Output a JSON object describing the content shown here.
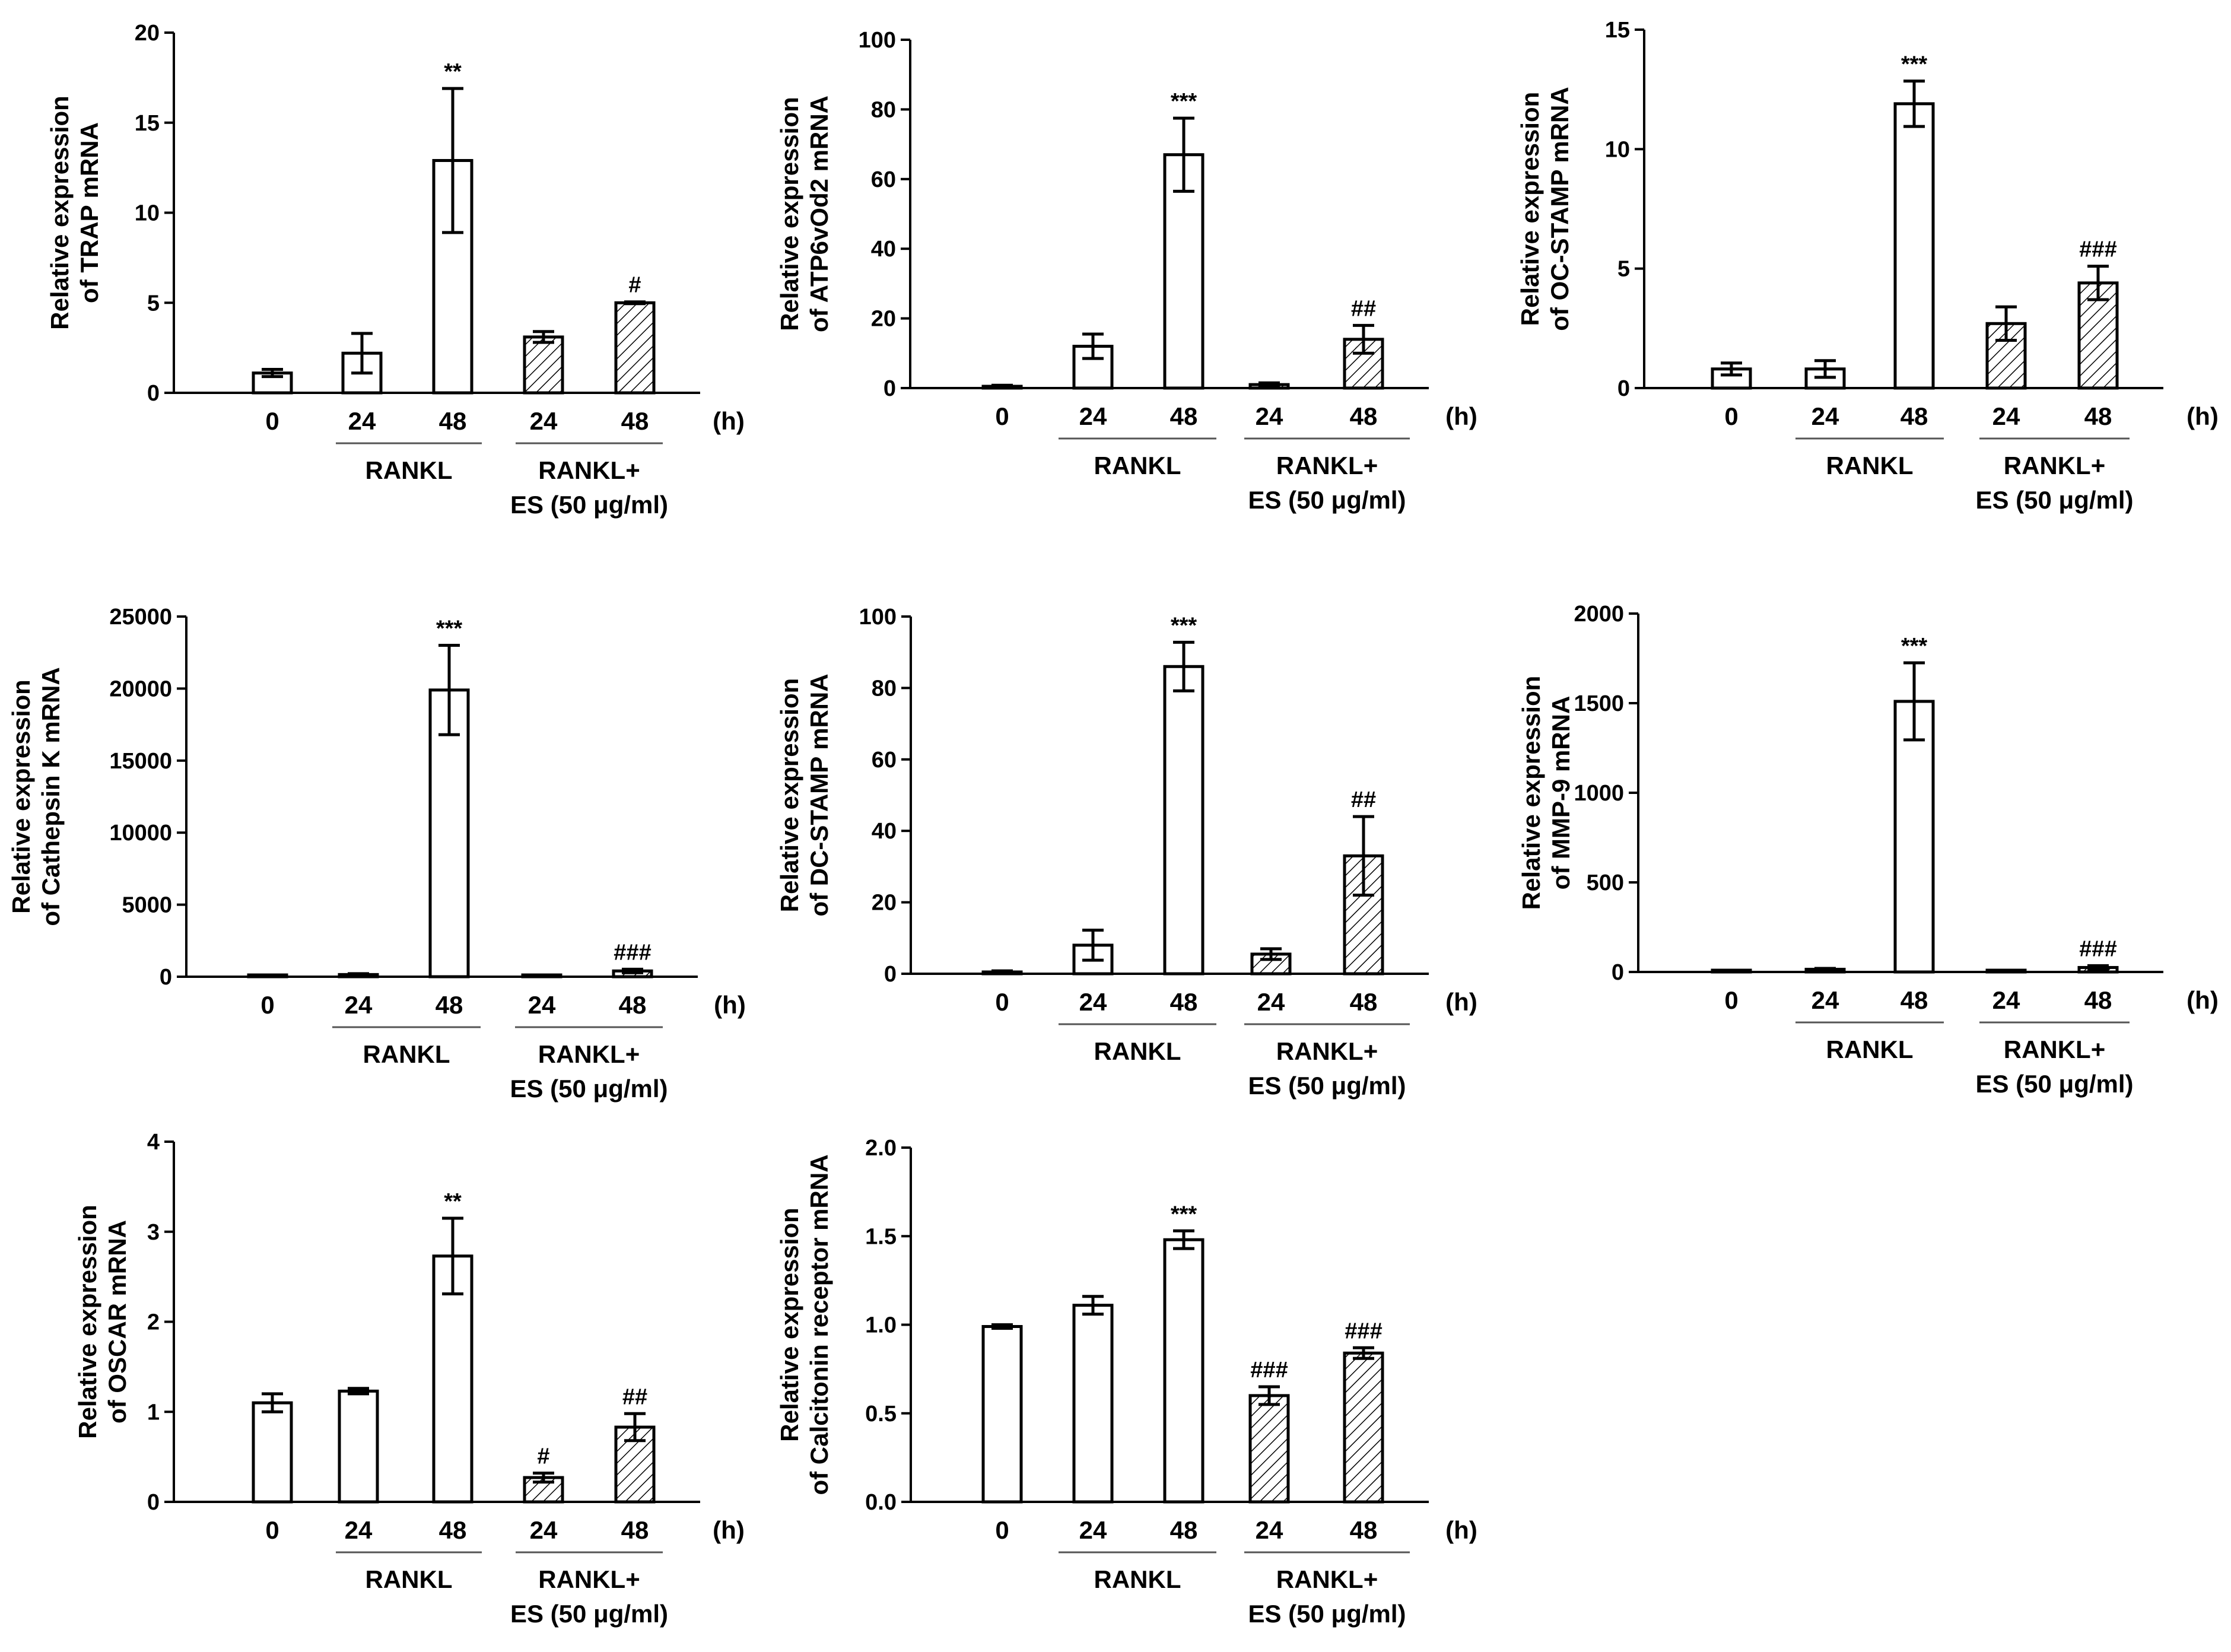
{
  "shared": {
    "categories": [
      "0",
      "24",
      "48",
      "24",
      "48"
    ],
    "unit": "(h)",
    "group1_label": "RANKL",
    "group2_label_line1": "RANKL+",
    "group2_label_line2": "ES (50 μg/ml)",
    "bar_patterns": [
      "open",
      "open",
      "open",
      "hatched",
      "hatched"
    ]
  },
  "chart_data": [
    {
      "type": "bar",
      "ylabel_line1": "Relative expression",
      "ylabel_line2": "of TRAP mRNA",
      "ylim": [
        0,
        20
      ],
      "yticks": [
        "0",
        "5",
        "10",
        "15",
        "20"
      ],
      "values": [
        1.1,
        2.2,
        12.9,
        3.1,
        5.0
      ],
      "errors": [
        0.2,
        1.1,
        4.0,
        0.3,
        0.05
      ],
      "annotations": [
        "",
        "",
        "**",
        "",
        "#"
      ]
    },
    {
      "type": "bar",
      "ylabel_line1": "Relative expression",
      "ylabel_line2": "of ATP6vOd2 mRNA",
      "ylim": [
        0,
        100
      ],
      "yticks": [
        "0",
        "20",
        "40",
        "60",
        "80",
        "100"
      ],
      "values": [
        0.5,
        12,
        67,
        1,
        14
      ],
      "errors": [
        0.3,
        3.5,
        10.5,
        0.5,
        4
      ],
      "annotations": [
        "",
        "",
        "***",
        "",
        "##"
      ]
    },
    {
      "type": "bar",
      "ylabel_line1": "Relative expression",
      "ylabel_line2": "of OC-STAMP mRNA",
      "ylim": [
        0,
        15
      ],
      "yticks": [
        "0",
        "5",
        "10",
        "15"
      ],
      "values": [
        0.8,
        0.8,
        11.9,
        2.7,
        4.4
      ],
      "errors": [
        0.25,
        0.35,
        0.95,
        0.7,
        0.7
      ],
      "annotations": [
        "",
        "",
        "***",
        "",
        "###"
      ]
    },
    {
      "type": "bar",
      "ylabel_line1": "Relative expression",
      "ylabel_line2": "of Cathepsin K mRNA",
      "ylim": [
        0,
        25000
      ],
      "yticks": [
        "0",
        "5000",
        "10000",
        "15000",
        "20000",
        "25000"
      ],
      "values": [
        10,
        150,
        19900,
        20,
        400
      ],
      "errors": [
        5,
        60,
        3100,
        10,
        120
      ],
      "annotations": [
        "",
        "",
        "***",
        "",
        "###"
      ]
    },
    {
      "type": "bar",
      "ylabel_line1": "Relative expression",
      "ylabel_line2": "of DC-STAMP mRNA",
      "ylim": [
        0,
        100
      ],
      "yticks": [
        "0",
        "20",
        "40",
        "60",
        "80",
        "100"
      ],
      "values": [
        0.5,
        8,
        86,
        5.5,
        33
      ],
      "errors": [
        0.3,
        4.2,
        6.8,
        1.5,
        11
      ],
      "annotations": [
        "",
        "",
        "***",
        "",
        "##"
      ]
    },
    {
      "type": "bar",
      "ylabel_line1": "Relative expression",
      "ylabel_line2": "of MMP-9 mRNA",
      "ylim": [
        0,
        2000
      ],
      "yticks": [
        "0",
        "500",
        "1000",
        "1500",
        "2000"
      ],
      "values": [
        1,
        15,
        1510,
        2,
        25
      ],
      "errors": [
        0.5,
        5,
        215,
        1,
        10
      ],
      "annotations": [
        "",
        "",
        "***",
        "",
        "###"
      ]
    },
    {
      "type": "bar",
      "ylabel_line1": "Relative expression",
      "ylabel_line2": "of OSCAR mRNA",
      "ylim": [
        0,
        4
      ],
      "yticks": [
        "0",
        "1",
        "2",
        "3",
        "4"
      ],
      "values": [
        1.1,
        1.23,
        2.73,
        0.27,
        0.83
      ],
      "errors": [
        0.1,
        0.03,
        0.42,
        0.05,
        0.15
      ],
      "annotations": [
        "",
        "",
        "**",
        "#",
        "##"
      ]
    },
    {
      "type": "bar",
      "ylabel_line1": "Relative expression",
      "ylabel_line2": "of Calcitonin receptor mRNA",
      "ylim": [
        0,
        2.0
      ],
      "yticks": [
        "0.0",
        "0.5",
        "1.0",
        "1.5",
        "2.0"
      ],
      "values": [
        0.99,
        1.11,
        1.48,
        0.6,
        0.84
      ],
      "errors": [
        0.01,
        0.05,
        0.05,
        0.05,
        0.03
      ],
      "annotations": [
        "",
        "",
        "***",
        "###",
        "###"
      ]
    }
  ]
}
